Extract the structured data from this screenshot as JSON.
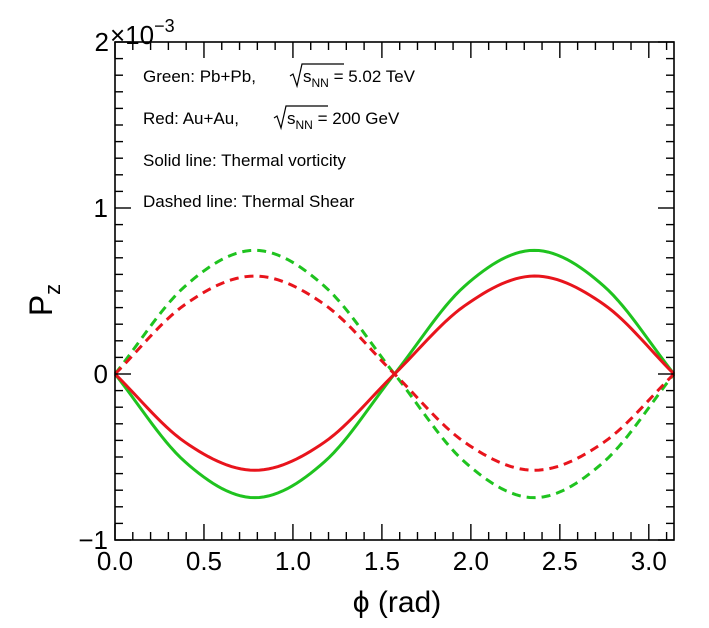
{
  "chart_data": {
    "type": "line",
    "title": "",
    "xlabel": "ϕ (rad)",
    "ylabel": "P",
    "ylabel_subscript": "z",
    "y_multiplier": "×10",
    "y_multiplier_exponent": "−3",
    "xlim": [
      0,
      3.1416
    ],
    "ylim": [
      -1,
      2
    ],
    "x_ticks": [
      0.0,
      0.5,
      1.0,
      1.5,
      2.0,
      2.5,
      3.0
    ],
    "x_tick_labels": [
      "0.0",
      "0.5",
      "1.0",
      "1.5",
      "2.0",
      "2.5",
      "3.0"
    ],
    "y_ticks": [
      -1,
      0,
      1,
      2
    ],
    "y_tick_labels": [
      "−1",
      "0",
      "1",
      "2"
    ],
    "legend_lines": [
      {
        "prefix": "Green: Pb+Pb,",
        "root_sym": "s",
        "root_sub": "NN",
        "suffix": " = 5.02 TeV"
      },
      {
        "prefix": "Red: Au+Au,",
        "root_sym": "s",
        "root_sub": "NN",
        "suffix": " = 200 GeV"
      },
      {
        "text": "Solid line: Thermal vorticity"
      },
      {
        "text": "Dashed line: Thermal Shear"
      }
    ],
    "x": [
      0,
      0.3927,
      0.7854,
      1.1781,
      1.5708,
      1.9635,
      2.3562,
      2.7489,
      3.1416
    ],
    "series": [
      {
        "name": "Pb+Pb thermal vorticity",
        "color": "#1fc31f",
        "dash": "solid",
        "values": [
          0,
          -0.528,
          -0.745,
          -0.528,
          0,
          0.528,
          0.745,
          0.528,
          0
        ]
      },
      {
        "name": "Au+Au thermal vorticity",
        "color": "#e8141c",
        "dash": "solid",
        "values": [
          0,
          -0.41,
          -0.58,
          -0.41,
          0,
          0.41,
          0.59,
          0.418,
          0
        ]
      },
      {
        "name": "Pb+Pb thermal shear",
        "color": "#1fc31f",
        "dash": "dashed",
        "values": [
          0,
          0.528,
          0.745,
          0.528,
          0,
          -0.528,
          -0.745,
          -0.528,
          0
        ]
      },
      {
        "name": "Au+Au thermal shear",
        "color": "#e8141c",
        "dash": "dashed",
        "values": [
          0,
          0.418,
          0.59,
          0.418,
          0,
          -0.41,
          -0.58,
          -0.41,
          0
        ]
      }
    ]
  }
}
